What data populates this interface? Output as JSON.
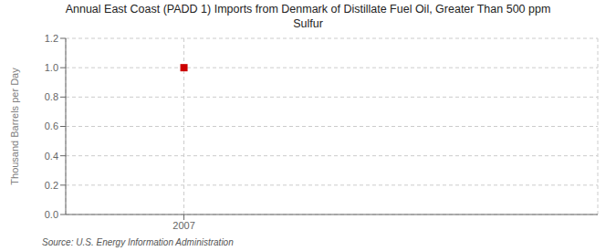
{
  "chart_data": {
    "type": "scatter",
    "title": "Annual East Coast (PADD 1) Imports from Denmark of Distillate Fuel Oil, Greater Than 500 ppm\nSulfur",
    "ylabel": "Thousand Barrels per Day",
    "source": "Source: U.S. Energy Information Administration",
    "x": [
      2007
    ],
    "values": [
      1.0
    ],
    "color": "#cc0000",
    "marker": "square",
    "xlim": [
      2006.6,
      2008.4
    ],
    "xticks": [
      2007
    ],
    "ylim": [
      0.0,
      1.2
    ],
    "yticks": [
      {
        "value": 0.0,
        "label": "0.0"
      },
      0.2,
      0.4,
      0.6,
      0.8,
      {
        "value": 1.0,
        "label": "1.0"
      },
      1.2
    ],
    "grid": true
  }
}
